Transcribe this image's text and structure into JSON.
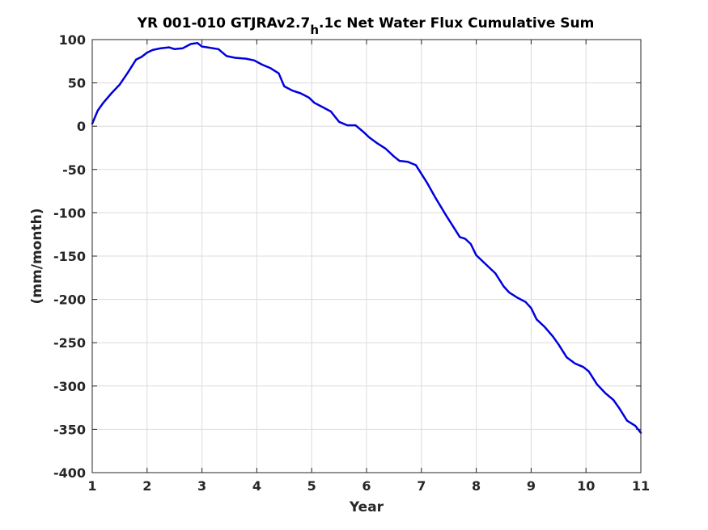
{
  "chart_data": {
    "type": "line",
    "title_main": "YR 001-010 GTJRAv2.7",
    "title_sub": "h",
    "title_rest": ".1c Net Water Flux Cumulative Sum",
    "xlabel": "Year",
    "ylabel": "(mm/month)",
    "xlim": [
      1,
      11
    ],
    "ylim": [
      -400,
      100
    ],
    "xticks": [
      "1",
      "2",
      "3",
      "4",
      "5",
      "6",
      "7",
      "8",
      "9",
      "10",
      "11"
    ],
    "yticks": [
      "100",
      "50",
      "0",
      "-50",
      "-100",
      "-150",
      "-200",
      "-250",
      "-300",
      "-350",
      "-400"
    ],
    "grid": true,
    "line_color": "#0000dd",
    "series": [
      {
        "x": [
          1.0,
          1.1,
          1.2,
          1.35,
          1.5,
          1.65,
          1.8,
          1.9,
          2.0,
          2.1,
          2.25,
          2.4,
          2.5,
          2.65,
          2.8,
          2.92,
          3.0,
          3.1,
          3.3,
          3.45,
          3.6,
          3.8,
          3.95,
          4.1,
          4.25,
          4.4,
          4.5,
          4.65,
          4.8,
          4.95,
          5.05,
          5.2,
          5.35,
          5.5,
          5.65,
          5.8,
          5.95,
          6.05,
          6.2,
          6.35,
          6.5,
          6.6,
          6.75,
          6.9,
          7.0,
          7.1,
          7.25,
          7.45,
          7.6,
          7.7,
          7.8,
          7.9,
          8.0,
          8.15,
          8.35,
          8.5,
          8.6,
          8.75,
          8.9,
          9.0,
          9.1,
          9.25,
          9.4,
          9.5,
          9.65,
          9.8,
          9.95,
          10.05,
          10.2,
          10.35,
          10.5,
          10.6,
          10.75,
          10.9,
          11.0
        ],
        "y": [
          3,
          18,
          27,
          38,
          48,
          62,
          77,
          80,
          85,
          88,
          90,
          91,
          89,
          90,
          95,
          96,
          92,
          91,
          89,
          81,
          79,
          78,
          76,
          71,
          67,
          61,
          46,
          41,
          38,
          33,
          27,
          22,
          17,
          5,
          1,
          1,
          -7,
          -13,
          -20,
          -26,
          -35,
          -40,
          -41,
          -45,
          -55,
          -65,
          -82,
          -103,
          -118,
          -128,
          -130,
          -136,
          -149,
          -158,
          -170,
          -185,
          -192,
          -198,
          -203,
          -210,
          -223,
          -232,
          -243,
          -252,
          -267,
          -274,
          -278,
          -283,
          -298,
          -308,
          -316,
          -325,
          -340,
          -346,
          -354
        ]
      }
    ]
  }
}
